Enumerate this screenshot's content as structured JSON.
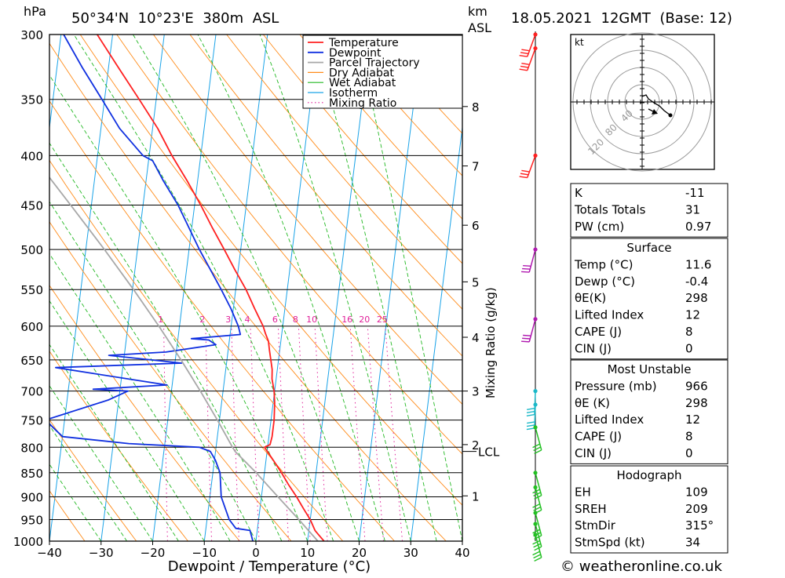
{
  "header": {
    "hpa_label": "hPa",
    "location": "50°34'N  10°23'E  380m  ASL",
    "km_label": "km",
    "asl_label": "ASL",
    "datetime": "18.05.2021  12GMT  (Base: 12)"
  },
  "footer": {
    "copyright": "© weatheronline.co.uk"
  },
  "chart_data": {
    "type": "line",
    "title": "Skew-T log-P diagram",
    "xlabel": "Dewpoint / Temperature (°C)",
    "ylabel": "hPa",
    "x_ticks": [
      "−40",
      "−30",
      "−20",
      "−10",
      "0",
      "10",
      "20",
      "30",
      "40"
    ],
    "xlim": [
      -40,
      40
    ],
    "pressure_levels": [
      300,
      350,
      400,
      450,
      500,
      550,
      600,
      650,
      700,
      750,
      800,
      850,
      900,
      950,
      1000
    ],
    "km_ticks": [
      {
        "km": "1",
        "p": 898
      },
      {
        "km": "2",
        "p": 795
      },
      {
        "km": "3",
        "p": 700
      },
      {
        "km": "4",
        "p": 616
      },
      {
        "km": "5",
        "p": 540
      },
      {
        "km": "6",
        "p": 472
      },
      {
        "km": "7",
        "p": 410
      },
      {
        "km": "8",
        "p": 356
      }
    ],
    "lcl_label": "LCL",
    "lcl_pressure": 808,
    "mixing_ratio_axis_label": "Mixing Ratio (g/kg)",
    "mixing_ratio_labels": [
      "1",
      "2",
      "3",
      "4",
      "6",
      "8",
      "10",
      "16",
      "20",
      "25"
    ],
    "mixing_ratio_values": [
      1,
      2,
      3,
      4,
      6,
      8,
      10,
      16,
      20,
      25
    ],
    "legend": [
      "Temperature",
      "Dewpoint",
      "Parcel Trajectory",
      "Dry Adiabat",
      "Wet Adiabat",
      "Isotherm",
      "Mixing Ratio"
    ],
    "colors": {
      "temperature": "#ff2020",
      "dewpoint": "#1030e0",
      "parcel": "#a8a8a8",
      "dry_adiabat": "#ff8c1a",
      "wet_adiabat": "#22b822",
      "isotherm": "#1aa3e8",
      "mixing_ratio": "#e0209a"
    },
    "series": [
      {
        "name": "Temperature",
        "points": [
          [
            1000,
            13.2
          ],
          [
            985,
            12.0
          ],
          [
            975,
            11.2
          ],
          [
            950,
            10.0
          ],
          [
            925,
            8.4
          ],
          [
            900,
            6.8
          ],
          [
            875,
            5.0
          ],
          [
            850,
            3.3
          ],
          [
            825,
            1.4
          ],
          [
            810,
            0.2
          ],
          [
            800,
            -0.6
          ],
          [
            795,
            0.4
          ],
          [
            780,
            0.6
          ],
          [
            750,
            0.6
          ],
          [
            720,
            0.3
          ],
          [
            700,
            -0.1
          ],
          [
            680,
            -0.8
          ],
          [
            665,
            -1.0
          ],
          [
            650,
            -1.5
          ],
          [
            635,
            -2.0
          ],
          [
            622,
            -2.4
          ],
          [
            610,
            -3.2
          ],
          [
            600,
            -3.8
          ],
          [
            575,
            -5.9
          ],
          [
            550,
            -8.0
          ],
          [
            525,
            -10.6
          ],
          [
            500,
            -13.2
          ],
          [
            475,
            -16.0
          ],
          [
            450,
            -18.8
          ],
          [
            425,
            -22.0
          ],
          [
            400,
            -25.6
          ],
          [
            375,
            -29.0
          ],
          [
            350,
            -33.3
          ],
          [
            325,
            -38.0
          ],
          [
            300,
            -43.0
          ]
        ]
      },
      {
        "name": "Dewpoint",
        "points": [
          [
            1000,
            -0.6
          ],
          [
            975,
            -1.4
          ],
          [
            970,
            -4.2
          ],
          [
            950,
            -5.7
          ],
          [
            900,
            -7.8
          ],
          [
            850,
            -8.6
          ],
          [
            825,
            -9.8
          ],
          [
            808,
            -11.0
          ],
          [
            800,
            -13.2
          ],
          [
            793,
            -27.0
          ],
          [
            780,
            -40.0
          ],
          [
            750,
            -43.7
          ],
          [
            715,
            -32.0
          ],
          [
            700,
            -28.4
          ],
          [
            697,
            -35.2
          ],
          [
            690,
            -21.0
          ],
          [
            662,
            -43.0
          ],
          [
            655,
            -18.7
          ],
          [
            643,
            -33.0
          ],
          [
            638,
            -22.0
          ],
          [
            627,
            -12.5
          ],
          [
            620,
            -14.0
          ],
          [
            618,
            -17.4
          ],
          [
            612,
            -8.0
          ],
          [
            600,
            -8.6
          ],
          [
            575,
            -10.5
          ],
          [
            550,
            -12.8
          ],
          [
            500,
            -18.0
          ],
          [
            450,
            -23.2
          ],
          [
            425,
            -26.6
          ],
          [
            405,
            -29.2
          ],
          [
            400,
            -31.2
          ],
          [
            375,
            -36.4
          ],
          [
            350,
            -40.5
          ],
          [
            325,
            -45.0
          ],
          [
            300,
            -49.5
          ]
        ]
      },
      {
        "name": "Parcel Trajectory",
        "points": [
          [
            1000,
            12.0
          ],
          [
            950,
            7.8
          ],
          [
            900,
            3.2
          ],
          [
            850,
            -1.6
          ],
          [
            808,
            -6.2
          ],
          [
            800,
            -6.8
          ],
          [
            750,
            -10.4
          ],
          [
            700,
            -14.4
          ],
          [
            650,
            -18.9
          ],
          [
            600,
            -24.0
          ],
          [
            550,
            -29.8
          ],
          [
            500,
            -36.4
          ],
          [
            450,
            -44.0
          ],
          [
            400,
            -52.6
          ],
          [
            350,
            -62.4
          ],
          [
            300,
            -74.0
          ]
        ]
      }
    ],
    "wind_barbs": [
      {
        "p": 300,
        "color": "#ff2020"
      },
      {
        "p": 310,
        "color": "#ff2020"
      },
      {
        "p": 400,
        "color": "#ff2020"
      },
      {
        "p": 500,
        "color": "#b019b0"
      },
      {
        "p": 590,
        "color": "#b019b0"
      },
      {
        "p": 700,
        "color": "#1ab8c8"
      },
      {
        "p": 723,
        "color": "#1ab8c8"
      },
      {
        "p": 763,
        "color": "#22c022"
      },
      {
        "p": 850,
        "color": "#22c022"
      },
      {
        "p": 880,
        "color": "#22c022"
      },
      {
        "p": 935,
        "color": "#22c022"
      },
      {
        "p": 960,
        "color": "#22c022"
      },
      {
        "p": 985,
        "color": "#22c022"
      }
    ],
    "hodograph": {
      "unit_label": "kt",
      "ring_labels": [
        "40",
        "80",
        "120"
      ]
    }
  },
  "indices": {
    "block1": [
      {
        "label": "K",
        "value": "-11"
      },
      {
        "label": "Totals Totals",
        "value": "31"
      },
      {
        "label": "PW (cm)",
        "value": "0.97"
      }
    ],
    "surface": {
      "title": "Surface",
      "rows": [
        {
          "label": "Temp (°C)",
          "value": "11.6"
        },
        {
          "label": "Dewp (°C)",
          "value": "-0.4"
        },
        {
          "label": "θE(K)",
          "value": "298"
        },
        {
          "label": "Lifted Index",
          "value": "12"
        },
        {
          "label": "CAPE (J)",
          "value": "8"
        },
        {
          "label": "CIN (J)",
          "value": "0"
        }
      ]
    },
    "most_unstable": {
      "title": "Most Unstable",
      "rows": [
        {
          "label": "Pressure (mb)",
          "value": "966"
        },
        {
          "label": "θE (K)",
          "value": "298"
        },
        {
          "label": "Lifted Index",
          "value": "12"
        },
        {
          "label": "CAPE (J)",
          "value": "8"
        },
        {
          "label": "CIN (J)",
          "value": "0"
        }
      ]
    },
    "hodograph_params": {
      "title": "Hodograph",
      "rows": [
        {
          "label": "EH",
          "value": "109"
        },
        {
          "label": "SREH",
          "value": "209"
        },
        {
          "label": "StmDir",
          "value": "315°"
        },
        {
          "label": "StmSpd (kt)",
          "value": "34"
        }
      ]
    }
  }
}
